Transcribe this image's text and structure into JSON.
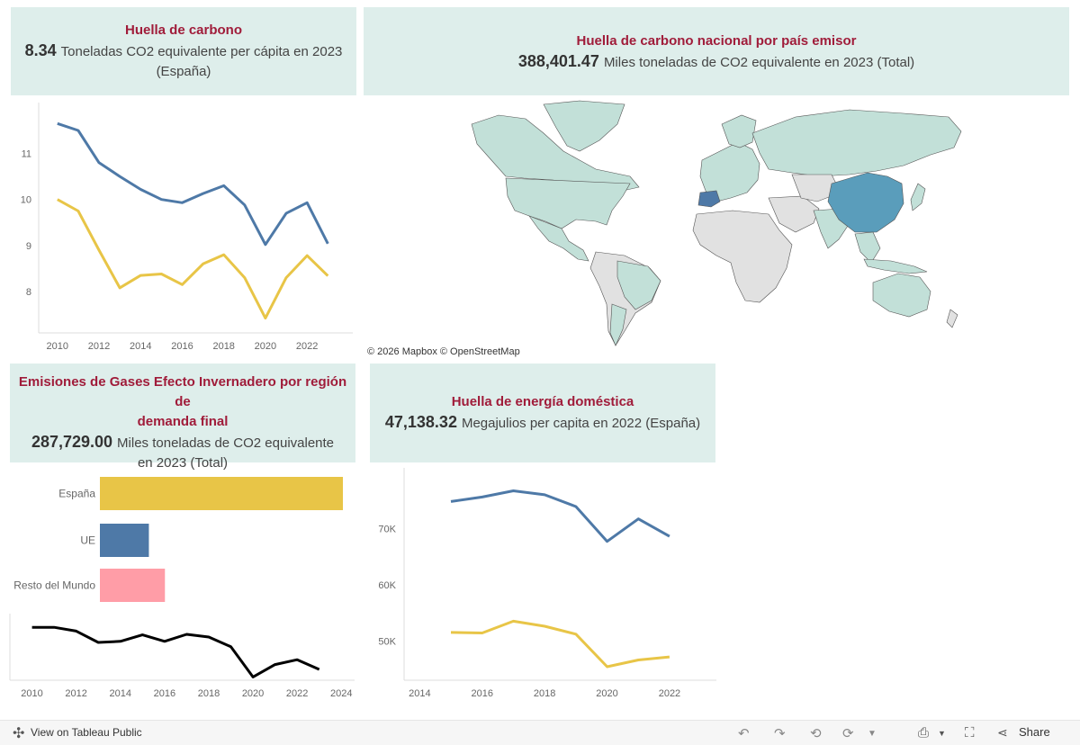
{
  "panels": {
    "carbon_capita": {
      "title": "Huella de carbono",
      "value": "8.34",
      "desc_line1": "Toneladas CO2 equivalente per cápita en 2023",
      "desc_line2": "(España)"
    },
    "national_carbon": {
      "title": "Huella de carbono nacional por país emisor",
      "value": "388,401.47",
      "desc": "Miles toneladas de CO2 equivalente en 2023 (Total)"
    },
    "ghg_region": {
      "title_line1": "Emisiones de Gases Efecto Invernadero por región de",
      "title_line2": "demanda final",
      "value": "287,729.00",
      "desc_line1": "Miles toneladas de CO2 equivalente",
      "desc_line2": "en 2023 (Total)"
    },
    "energy": {
      "title": "Huella de energía doméstica",
      "value": "47,138.32",
      "desc": "Megajulios per capita en 2022 (España)"
    }
  },
  "map": {
    "attribution": "© 2026 Mapbox  © OpenStreetMap",
    "colors": {
      "land_data": "#c2e0d8",
      "land_nodata": "#e1e1e1",
      "highlight": "#5a9dbb",
      "spain": "#4e79a7",
      "border": "#555555"
    }
  },
  "colors": {
    "blue": "#4e79a7",
    "yellow": "#e8c547",
    "pink": "#ff9da7",
    "black": "#000000",
    "title": "#a01c3a",
    "panel_bg": "#deeeeb"
  },
  "chart_data": [
    {
      "type": "line",
      "x": [
        2010,
        2011,
        2012,
        2013,
        2014,
        2015,
        2016,
        2017,
        2018,
        2019,
        2020,
        2021,
        2022,
        2023
      ],
      "series": [
        {
          "color": "blue",
          "values": [
            11.65,
            11.5,
            10.8,
            10.5,
            10.22,
            10.0,
            9.93,
            10.13,
            10.3,
            9.88,
            9.02,
            9.7,
            9.93,
            9.04
          ]
        },
        {
          "color": "yellow",
          "values": [
            10.0,
            9.75,
            8.9,
            8.08,
            8.35,
            8.38,
            8.15,
            8.6,
            8.8,
            8.3,
            7.42,
            8.3,
            8.78,
            8.34
          ]
        }
      ],
      "xticks": [
        2010,
        2012,
        2014,
        2016,
        2018,
        2020,
        2022
      ],
      "yticks": [
        8,
        9,
        10,
        11
      ],
      "xlim": [
        2009.1,
        2024.2
      ],
      "ylim": [
        7.1,
        11.95
      ]
    },
    {
      "type": "bar",
      "orientation": "horizontal",
      "categories": [
        "España",
        "UE",
        "Resto del Mundo"
      ],
      "values": [
        287729,
        58000,
        77000
      ],
      "colors": [
        "yellow",
        "blue",
        "pink"
      ],
      "xlim": [
        0,
        287729
      ]
    },
    {
      "type": "line",
      "x": [
        2010,
        2011,
        2012,
        2013,
        2014,
        2015,
        2016,
        2017,
        2018,
        2019,
        2020,
        2021,
        2022,
        2023
      ],
      "series": [
        {
          "color": "black",
          "values": [
            0.98,
            0.98,
            0.91,
            0.7,
            0.72,
            0.84,
            0.72,
            0.85,
            0.8,
            0.62,
            0.06,
            0.29,
            0.38,
            0.2
          ]
        }
      ],
      "xticks": [
        2010,
        2012,
        2014,
        2016,
        2018,
        2020,
        2022,
        2024
      ],
      "xlim": [
        2009,
        2024.6
      ],
      "ylim": [
        0,
        1.1
      ]
    },
    {
      "type": "line",
      "x": [
        2015,
        2016,
        2017,
        2018,
        2019,
        2020,
        2021,
        2022
      ],
      "series": [
        {
          "color": "blue",
          "values": [
            74800,
            75600,
            76700,
            76000,
            73900,
            67700,
            71700,
            68600
          ]
        },
        {
          "color": "yellow",
          "values": [
            51500,
            51400,
            53500,
            52600,
            51200,
            45400,
            46600,
            47138.32
          ]
        }
      ],
      "xticks": [
        2014,
        2016,
        2018,
        2020,
        2022
      ],
      "yticks": [
        50000,
        60000,
        70000
      ],
      "ytick_labels": [
        "50K",
        "60K",
        "70K"
      ],
      "xlim": [
        2013.5,
        2023.5
      ],
      "ylim": [
        43000,
        79500
      ]
    }
  ],
  "footer": {
    "view_label": "View on Tableau Public",
    "share_label": "Share"
  }
}
